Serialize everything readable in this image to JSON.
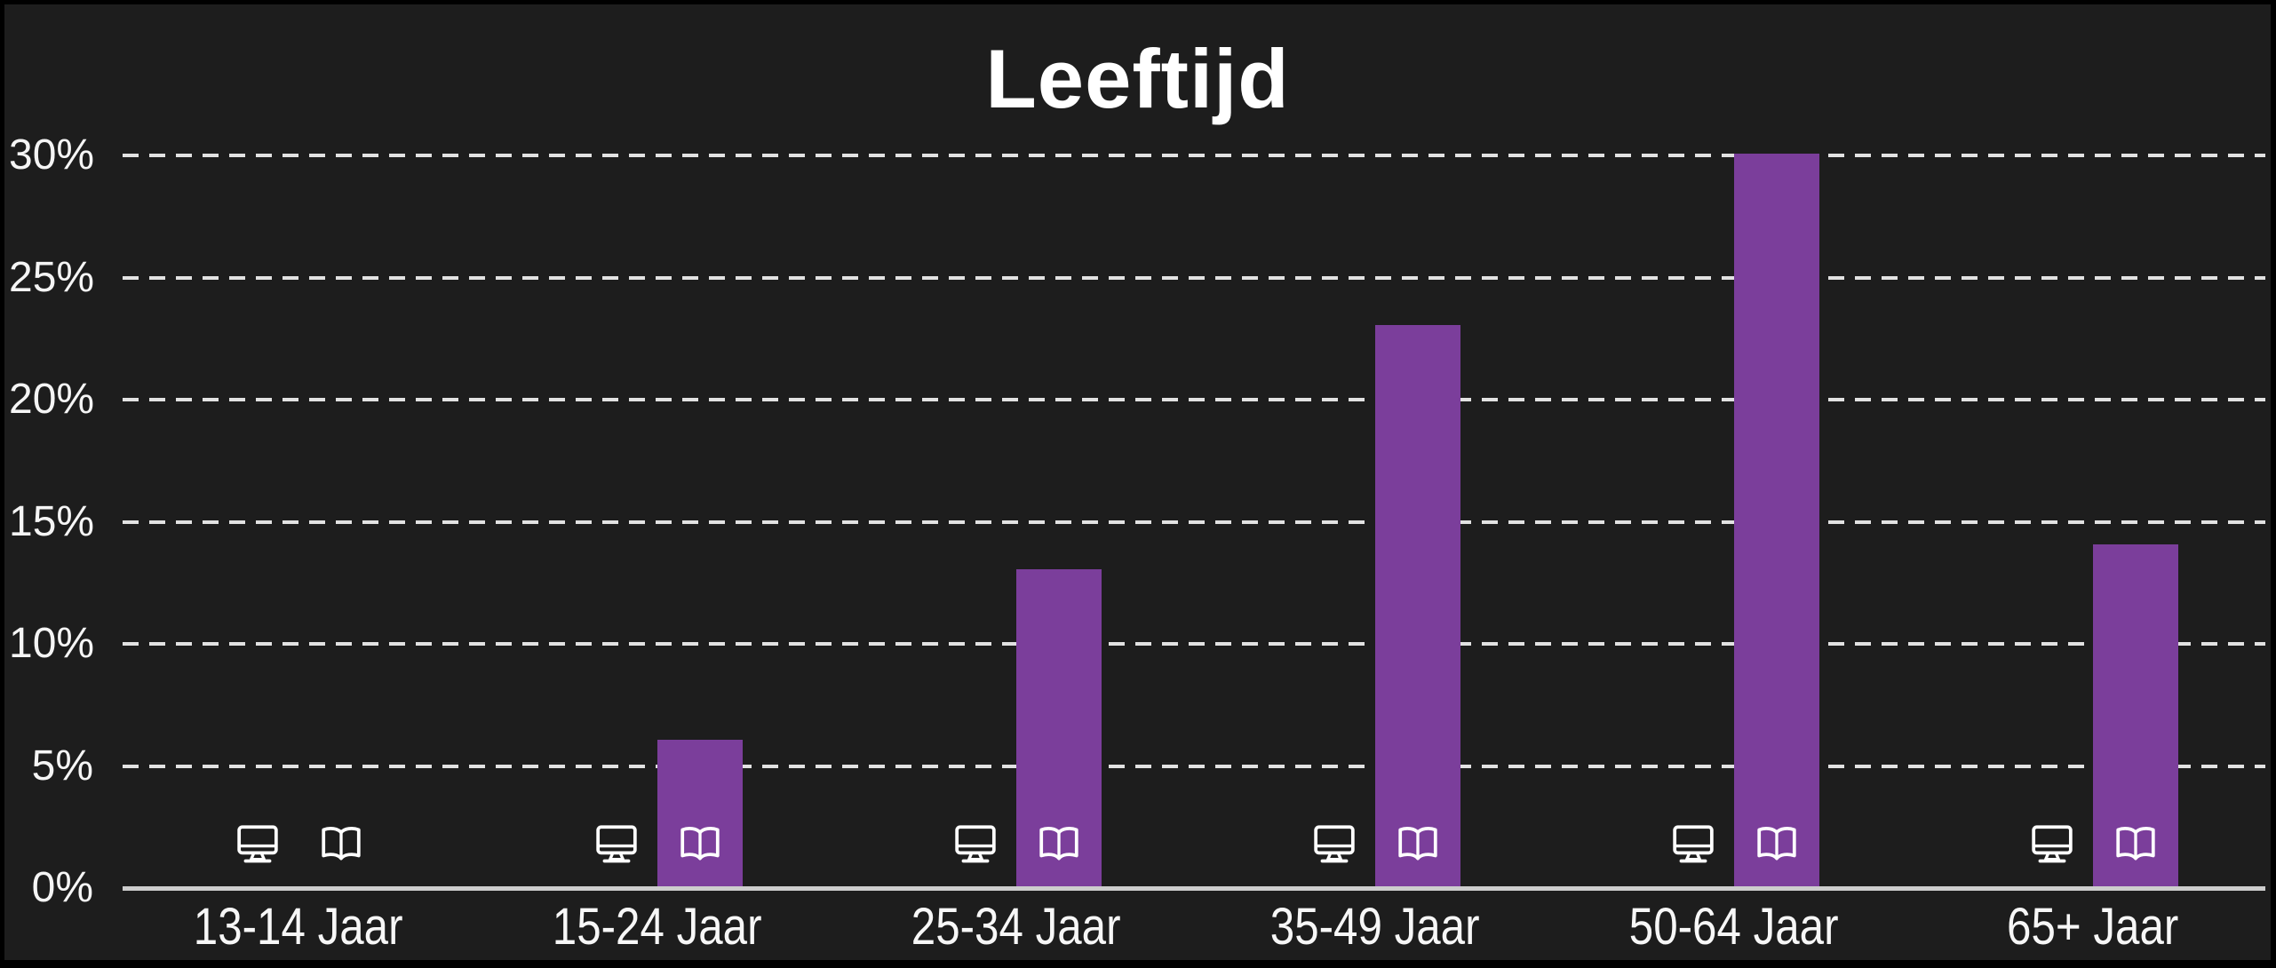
{
  "chart_data": {
    "type": "bar",
    "title": "Leeftijd",
    "categories": [
      "13-14 Jaar",
      "15-24 Jaar",
      "25-34 Jaar",
      "35-49 Jaar",
      "50-64 Jaar",
      "65+ Jaar"
    ],
    "values": [
      0,
      6,
      13,
      23,
      30,
      14
    ],
    "unit": "%",
    "y_ticks": [
      {
        "value": 0,
        "label": "0%"
      },
      {
        "value": 5,
        "label": "5%"
      },
      {
        "value": 10,
        "label": "10%"
      },
      {
        "value": 15,
        "label": "15%"
      },
      {
        "value": 20,
        "label": "20%"
      },
      {
        "value": 25,
        "label": "25%"
      },
      {
        "value": 30,
        "label": "30%"
      }
    ],
    "ylim": [
      0,
      30
    ],
    "xlabel": "",
    "ylabel": "",
    "grid": "horizontal-dashed",
    "legend": "none",
    "category_icons": [
      "monitor-icon",
      "open-book-icon"
    ],
    "colors": {
      "bar": "#7b3e9b",
      "background": "#1d1d1d",
      "frame": "#000000",
      "gridline": "#e2e2e2",
      "axis_line": "#cdcdcd",
      "text": "#ffffff"
    }
  }
}
